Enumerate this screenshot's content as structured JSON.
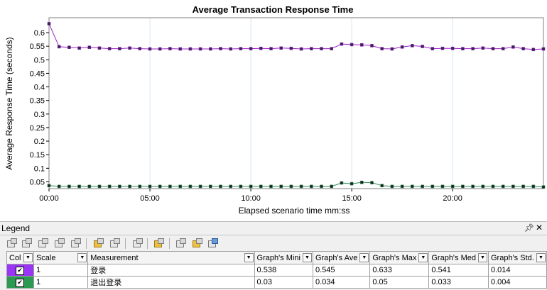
{
  "chart_data": {
    "type": "line",
    "title": "Average Transaction Response Time",
    "xlabel": "Elapsed scenario time mm:ss",
    "ylabel": "Average Response Time (seconds)",
    "xlim": [
      0,
      1470
    ],
    "ylim": [
      0.025,
      0.655
    ],
    "xticks": [
      0,
      300,
      600,
      900,
      1200
    ],
    "xtick_labels": [
      "00:00",
      "05:00",
      "10:00",
      "15:00",
      "20:00"
    ],
    "yticks": [
      0.05,
      0.1,
      0.15,
      0.2,
      0.25,
      0.3,
      0.35,
      0.4,
      0.45,
      0.5,
      0.55,
      0.6
    ],
    "ytick_labels": [
      "0.05",
      "0.1",
      "0.15",
      "0.2",
      "0.25",
      "0.3",
      "0.35",
      "0.4",
      "0.45",
      "0.5",
      "0.55",
      "0.6"
    ],
    "x": [
      0,
      30,
      60,
      90,
      120,
      150,
      180,
      210,
      240,
      270,
      300,
      330,
      360,
      390,
      420,
      450,
      480,
      510,
      540,
      570,
      600,
      630,
      660,
      690,
      720,
      750,
      780,
      810,
      840,
      870,
      900,
      930,
      960,
      990,
      1020,
      1050,
      1080,
      1110,
      1140,
      1170,
      1200,
      1230,
      1260,
      1290,
      1320,
      1350,
      1380,
      1410,
      1440,
      1470
    ],
    "grid": true,
    "series": [
      {
        "color": "#9e1fc8",
        "marker_fill": "#2a2a44",
        "values": [
          0.633,
          0.548,
          0.546,
          0.543,
          0.546,
          0.543,
          0.541,
          0.541,
          0.543,
          0.541,
          0.54,
          0.54,
          0.541,
          0.54,
          0.54,
          0.54,
          0.54,
          0.541,
          0.54,
          0.541,
          0.541,
          0.542,
          0.541,
          0.543,
          0.542,
          0.54,
          0.541,
          0.541,
          0.541,
          0.558,
          0.556,
          0.555,
          0.552,
          0.541,
          0.54,
          0.547,
          0.552,
          0.549,
          0.541,
          0.542,
          0.542,
          0.541,
          0.541,
          0.543,
          0.541,
          0.541,
          0.547,
          0.541,
          0.538,
          0.54
        ]
      },
      {
        "color": "#2b8a56",
        "marker_fill": "#1e1e1e",
        "values": [
          0.036,
          0.033,
          0.033,
          0.033,
          0.033,
          0.033,
          0.033,
          0.033,
          0.033,
          0.033,
          0.033,
          0.033,
          0.033,
          0.033,
          0.033,
          0.033,
          0.033,
          0.033,
          0.033,
          0.033,
          0.033,
          0.033,
          0.033,
          0.033,
          0.033,
          0.033,
          0.033,
          0.033,
          0.033,
          0.046,
          0.043,
          0.048,
          0.047,
          0.036,
          0.033,
          0.033,
          0.033,
          0.033,
          0.033,
          0.033,
          0.033,
          0.033,
          0.033,
          0.033,
          0.033,
          0.033,
          0.033,
          0.033,
          0.033,
          0.031
        ]
      }
    ]
  },
  "legend": {
    "title": "Legend",
    "columns": [
      "Col",
      "Scale",
      "Measurement",
      "Graph's Mini",
      "Graph's Ave",
      "Graph's Max",
      "Graph's Med",
      "Graph's Std."
    ],
    "rows": [
      {
        "color": "#9b35f5",
        "checked": "✔",
        "scale": "1",
        "measurement": "登录",
        "min": "0.538",
        "avg": "0.545",
        "max": "0.633",
        "median": "0.541",
        "std": "0.014"
      },
      {
        "color": "#2d9a54",
        "checked": "✔",
        "scale": "1",
        "measurement": "退出登录",
        "min": "0.03",
        "avg": "0.034",
        "max": "0.05",
        "median": "0.033",
        "std": "0.004"
      }
    ]
  },
  "icons": {
    "pin": "pin-icon",
    "close": "close-icon",
    "dropdown": "chevron-down-icon"
  }
}
